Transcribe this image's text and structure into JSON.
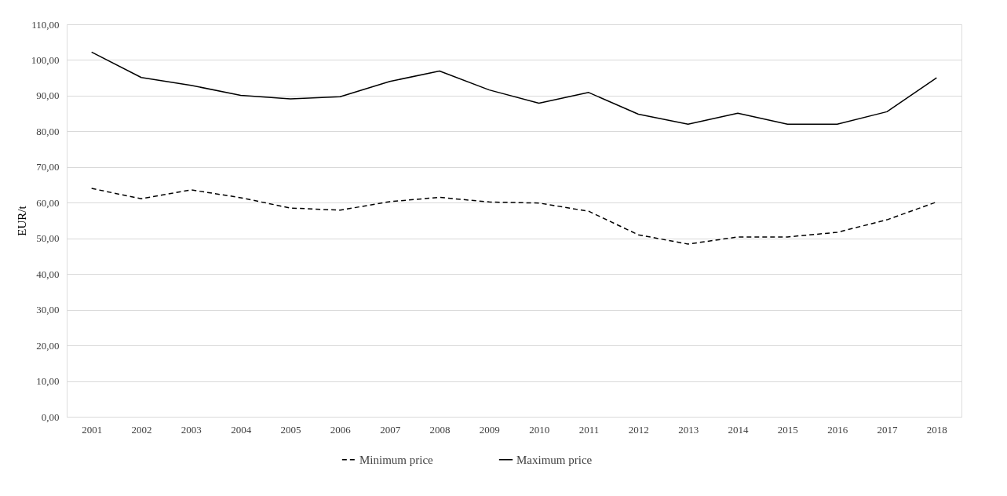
{
  "chart_data": {
    "type": "line",
    "ylabel": "EUR/t",
    "categories": [
      "2001",
      "2002",
      "2003",
      "2004",
      "2005",
      "2006",
      "2007",
      "2008",
      "2009",
      "2010",
      "2011",
      "2012",
      "2013",
      "2014",
      "2015",
      "2016",
      "2017",
      "2018"
    ],
    "series": [
      {
        "name": "Minimum price",
        "color": "#000000",
        "line_style": "dashed",
        "values": [
          64.0,
          61.1,
          63.6,
          61.4,
          58.5,
          57.9,
          60.3,
          61.5,
          60.2,
          59.9,
          57.6,
          51.0,
          48.4,
          50.4,
          50.4,
          51.7,
          55.2,
          60.2
        ]
      },
      {
        "name": "Maximum price",
        "color": "#000000",
        "line_style": "solid",
        "values": [
          102.2,
          95.1,
          92.9,
          90.1,
          89.1,
          89.7,
          94.0,
          96.9,
          91.6,
          87.9,
          90.9,
          84.8,
          82.0,
          85.1,
          82.0,
          82.0,
          85.5,
          95.0
        ]
      }
    ],
    "ylim": [
      0,
      110
    ],
    "yticks": [
      {
        "value": 0,
        "label": "0,00"
      },
      {
        "value": 10,
        "label": "10,00"
      },
      {
        "value": 20,
        "label": "20,00"
      },
      {
        "value": 30,
        "label": "30,00"
      },
      {
        "value": 40,
        "label": "40,00"
      },
      {
        "value": 50,
        "label": "50,00"
      },
      {
        "value": 60,
        "label": "60,00"
      },
      {
        "value": 70,
        "label": "70,00"
      },
      {
        "value": 80,
        "label": "80,00"
      },
      {
        "value": 90,
        "label": "90,00"
      },
      {
        "value": 100,
        "label": "100,00"
      },
      {
        "value": 110,
        "label": "110,00"
      }
    ],
    "grid": "y",
    "legend": "bottom",
    "marker": "none"
  }
}
